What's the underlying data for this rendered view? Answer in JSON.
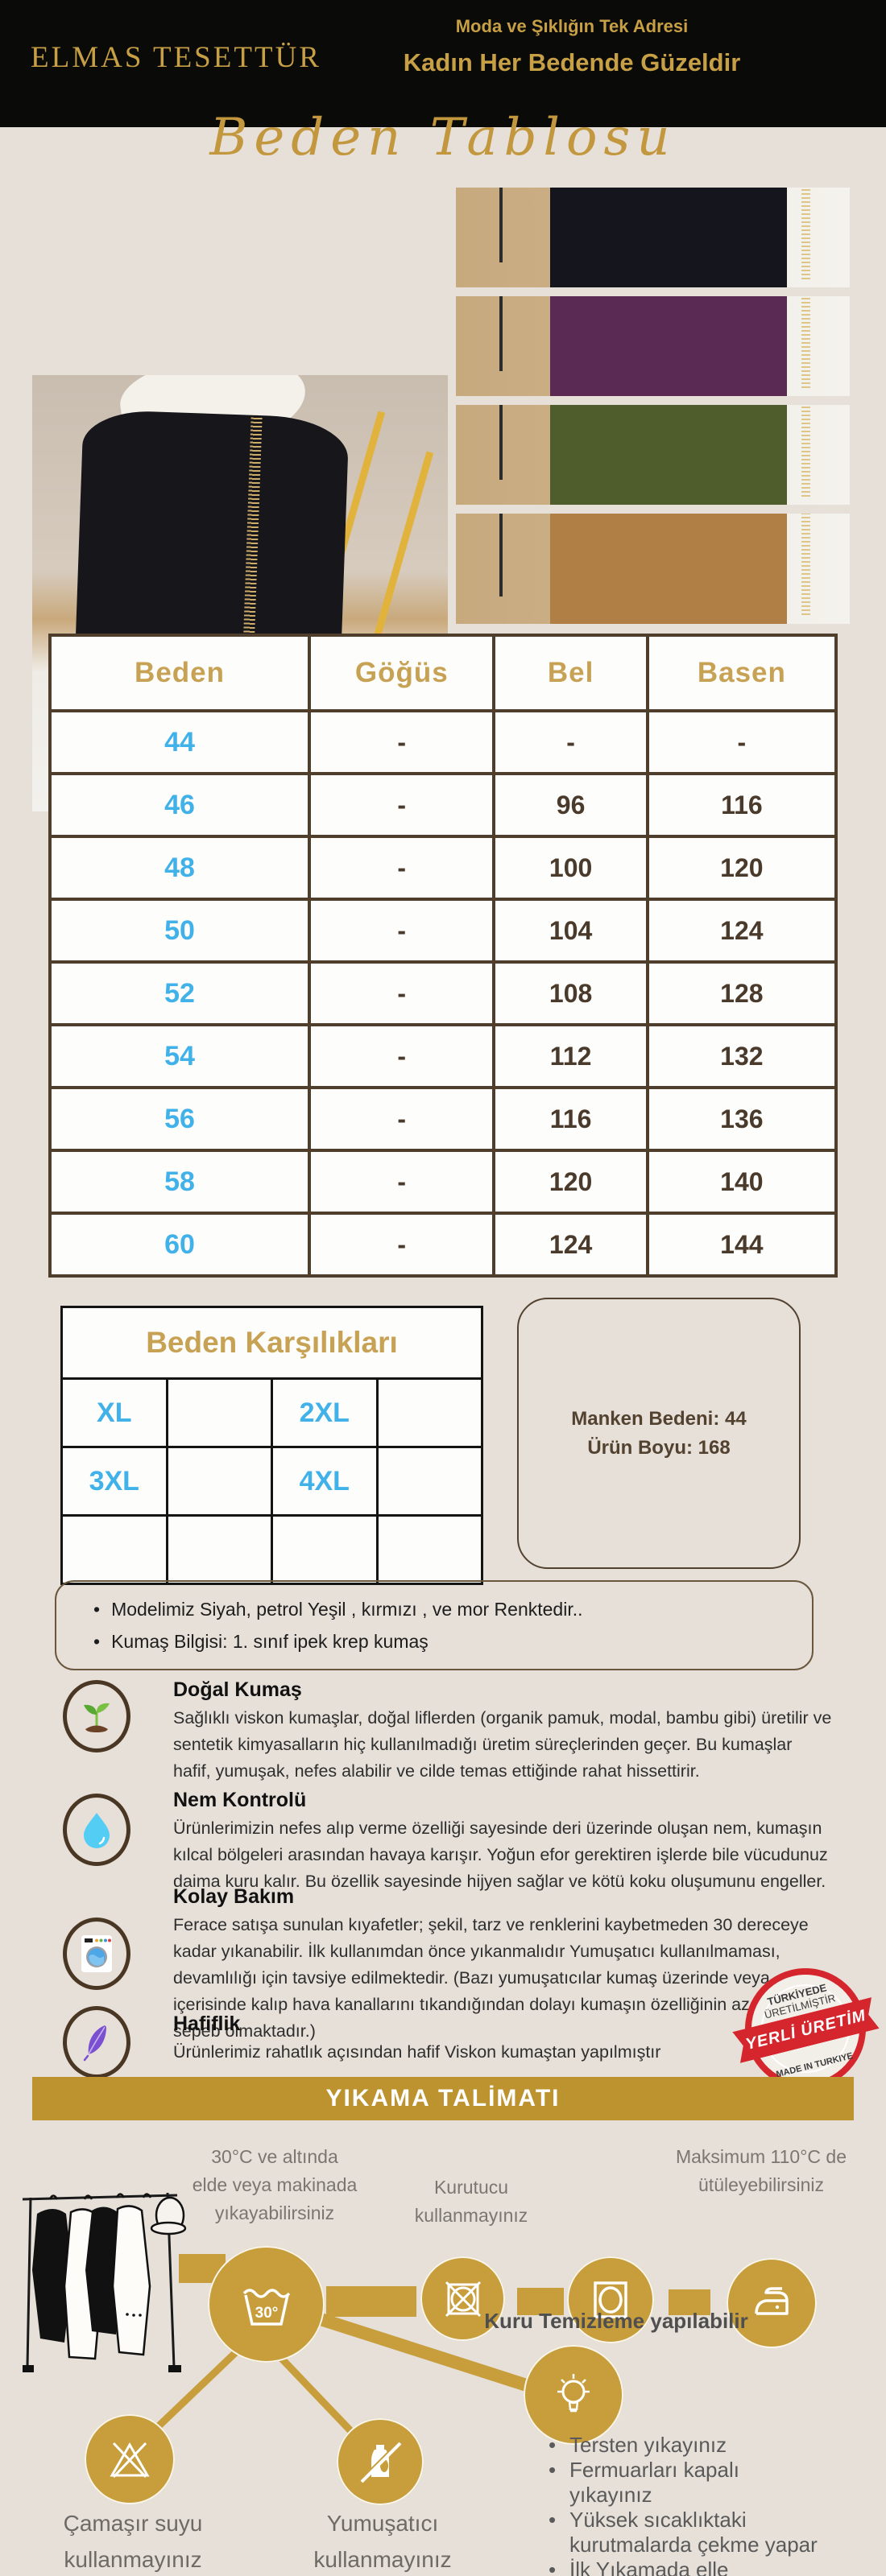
{
  "header": {
    "brand": "ELMAS TESETTÜR",
    "tagline": "Moda ve Şıklığın Tek Adresi",
    "slogan": "Kadın Her Bedende Güzeldir",
    "script_title": "Beden Tablosu"
  },
  "gallery": {
    "variant_colors": [
      "#15151d",
      "#5b2a54",
      "#4f5c2c",
      "#b07f45"
    ]
  },
  "size_table": {
    "headers": [
      "Beden",
      "Göğüs",
      "Bel",
      "Basen"
    ],
    "rows": [
      [
        "44",
        "-",
        "-",
        "-"
      ],
      [
        "46",
        "-",
        "96",
        "116"
      ],
      [
        "48",
        "-",
        "100",
        "120"
      ],
      [
        "50",
        "-",
        "104",
        "124"
      ],
      [
        "52",
        "-",
        "108",
        "128"
      ],
      [
        "54",
        "-",
        "112",
        "132"
      ],
      [
        "56",
        "-",
        "116",
        "136"
      ],
      [
        "58",
        "-",
        "120",
        "140"
      ],
      [
        "60",
        "-",
        "124",
        "144"
      ]
    ]
  },
  "size_equivalents": {
    "title": "Beden Karşılıkları",
    "cells": [
      [
        "XL",
        "",
        "2XL",
        ""
      ],
      [
        "3XL",
        "",
        "4XL",
        ""
      ],
      [
        "",
        "",
        "",
        ""
      ]
    ]
  },
  "model_info": {
    "model_size": "Manken Bedeni: 44",
    "product_length": "Ürün Boyu: 168"
  },
  "notes": [
    "Modelimiz Siyah,  petrol Yeşil , kırmızı , ve mor Renktedir..",
    "Kumaş Bilgisi: 1. sınıf ipek krep kumaş"
  ],
  "features": [
    {
      "icon": "sprout-icon",
      "title": "Doğal Kumaş",
      "text": "Sağlıklı viskon kumaşlar, doğal liflerden (organik pamuk, modal, bambu gibi) üretilir ve sentetik kimyasalların hiç kullanılmadığı üretim süreçlerinden geçer. Bu kumaşlar hafif, yumuşak, nefes alabilir ve cilde temas ettiğinde rahat hissettirir."
    },
    {
      "icon": "water-drop-icon",
      "title": "Nem Kontrolü",
      "text": "Ürünlerimizin nefes alıp verme özelliği sayesinde deri üzerinde oluşan nem, kumaşın kılcal bölgeleri arasından havaya karışır. Yoğun efor gerektiren işlerde bile vücudunuz daima  kuru kalır. Bu özellik sayesinde  hijyen sağlar ve kötü koku oluşumunu engeller."
    },
    {
      "icon": "washing-machine-icon",
      "title": "Kolay Bakım",
      "text": "Ferace satışa sunulan kıyafetler; şekil, tarz ve renklerini kaybetmeden 30 dereceye kadar yıkanabilir. İlk kullanımdan önce yıkanmalıdır Yumuşatıcı kullanılmaması,  devamlılığı için tavsiye edilmektedir. (Bazı yumuşatıcılar kumaş üzerinde veya içerisinde kalıp hava kanallarını tıkandığından dolayı kumaşın özelliğinin azalmasına sepeb olmaktadır.)"
    },
    {
      "icon": "feather-icon",
      "title": "Hafiflik",
      "text": "Ürünlerimiz rahatlık açısından hafif Viskon kumaştan yapılmıştır"
    }
  ],
  "stamp": {
    "top_line1": "TÜRKİYEDE",
    "top_line2": "ÜRETİLMİŞTİR",
    "ribbon": "YERLİ ÜRETİM",
    "bottom": "MADE IN TURKIYE"
  },
  "wash_banner": "YIKAMA TALİMATI",
  "wash": {
    "step1": "30°C ve altında\nelde veya makinada\nyıkayabilirsiniz",
    "step2": "Kurutucu\nkullanmayınız",
    "step3": "Maksimum 110°C de\nütüleyebilirsiniz",
    "tub_label": "30°",
    "dry_clean": "Kuru Temizleme yapılabilir",
    "label_bleach": "Çamaşır suyu\nkullanmayınız",
    "label_softener": "Yumuşatıcı\nkullanmayınız",
    "tips": [
      "Tersten yıkayınız",
      "Fermuarları kapalı yıkayınız",
      "Yüksek sıcaklıktaki kurutmalarda çekme yapar",
      "İlk Yıkamada elle yıkamanızı tavsiye ederiz."
    ]
  },
  "colors": {
    "background": "#e6e0d9",
    "header_black": "#0a0a08",
    "gold_text": "#c79f45",
    "table_gold": "#c8a254",
    "size_blue": "#41b1e9",
    "table_border": "#4f3e2c",
    "banner_gold": "#bd9330",
    "circle_gold": "#c79e3b",
    "stamp_red": "#d6262d"
  }
}
